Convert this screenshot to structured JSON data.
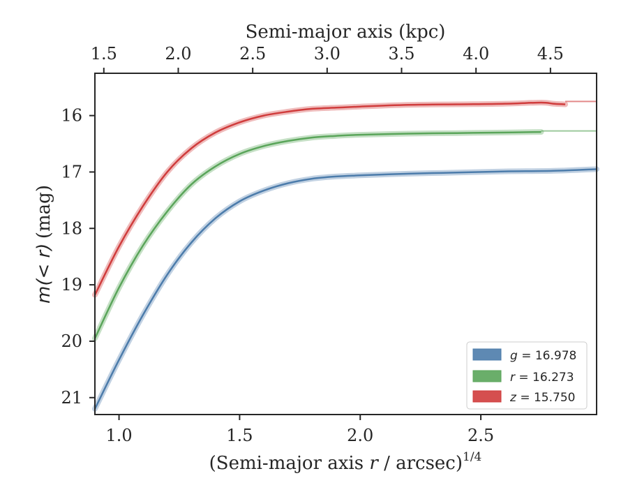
{
  "chart_data": {
    "type": "line",
    "title": "",
    "xlabel_main": "(Semi-major axis",
    "xlabel_var": "r",
    "xlabel_tail": "/ arcsec)",
    "xlabel_exp": "1/4",
    "top_xlabel": "Semi-major axis (kpc)",
    "ylabel_var": "m(< r)",
    "ylabel_unit": "(mag)",
    "xlim": [
      0.9,
      2.98
    ],
    "ylim": [
      21.3,
      15.25
    ],
    "y_inverted": true,
    "top_xlim": [
      1.44,
      4.81
    ],
    "x_ticks": [
      "1.0",
      "1.5",
      "2.0",
      "2.5"
    ],
    "x_tick_values": [
      1.0,
      1.5,
      2.0,
      2.5
    ],
    "y_ticks": [
      "16",
      "17",
      "18",
      "19",
      "20",
      "21"
    ],
    "y_tick_values": [
      16,
      17,
      18,
      19,
      20,
      21
    ],
    "top_ticks": [
      "1.5",
      "2.0",
      "2.5",
      "3.0",
      "3.5",
      "4.0",
      "4.5"
    ],
    "top_tick_values": [
      1.5,
      2.0,
      2.5,
      3.0,
      3.5,
      4.0,
      4.5
    ],
    "grid": false,
    "legend_position": "lower-right",
    "series": [
      {
        "name": "g",
        "label_var": "g",
        "label_value": "= 16.978",
        "color": "#4c7cab",
        "asymptote": 16.978,
        "x": [
          0.9,
          1.0,
          1.1,
          1.2,
          1.3,
          1.4,
          1.5,
          1.6,
          1.7,
          1.8,
          1.9,
          2.0,
          2.2,
          2.4,
          2.6,
          2.8,
          2.98
        ],
        "values": [
          21.2,
          20.33,
          19.53,
          18.82,
          18.25,
          17.82,
          17.52,
          17.33,
          17.2,
          17.12,
          17.08,
          17.06,
          17.03,
          17.01,
          16.99,
          16.98,
          16.95
        ]
      },
      {
        "name": "r",
        "label_var": "r",
        "label_value": "= 16.273",
        "color": "#5aa55a",
        "asymptote": 16.273,
        "x": [
          0.9,
          1.0,
          1.1,
          1.2,
          1.3,
          1.4,
          1.5,
          1.6,
          1.7,
          1.8,
          1.9,
          2.0,
          2.2,
          2.4,
          2.6,
          2.75
        ],
        "values": [
          19.95,
          19.05,
          18.3,
          17.7,
          17.22,
          16.9,
          16.68,
          16.54,
          16.45,
          16.39,
          16.36,
          16.34,
          16.32,
          16.31,
          16.3,
          16.29
        ]
      },
      {
        "name": "z",
        "label_var": "z",
        "label_value": "= 15.750",
        "color": "#d03c3c",
        "asymptote": 15.75,
        "x": [
          0.9,
          1.0,
          1.1,
          1.2,
          1.3,
          1.4,
          1.5,
          1.6,
          1.7,
          1.8,
          1.9,
          2.0,
          2.2,
          2.4,
          2.6,
          2.75,
          2.8,
          2.85
        ],
        "values": [
          19.18,
          18.32,
          17.6,
          17.0,
          16.58,
          16.3,
          16.12,
          16.0,
          15.93,
          15.88,
          15.86,
          15.84,
          15.81,
          15.8,
          15.79,
          15.77,
          15.79,
          15.8
        ]
      }
    ]
  }
}
